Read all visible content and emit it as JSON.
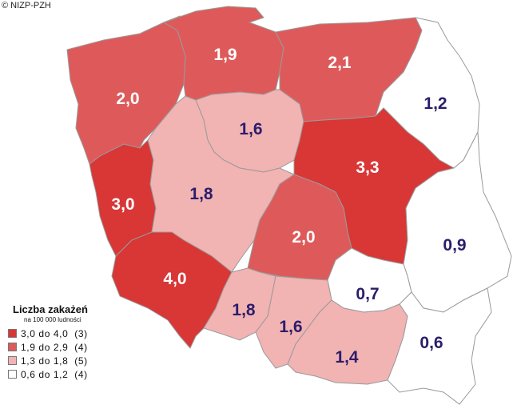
{
  "copyright": "© NIZP-PZH",
  "legend": {
    "title": "Liczba zakażeń",
    "subtitle": "na 100 000 ludności",
    "items": [
      {
        "range": "3,0 do 4,0",
        "count": "(3)",
        "color": "#d93636"
      },
      {
        "range": "1,9 do 2,9",
        "count": "(4)",
        "color": "#de5a5a"
      },
      {
        "range": "1,3 do 1,8",
        "count": "(5)",
        "color": "#f2b3b3"
      },
      {
        "range": "0,6 do 1,2",
        "count": "(4)",
        "color": "#ffffff"
      }
    ]
  },
  "regions": [
    {
      "name": "zachodniopomorskie",
      "value": "2,0",
      "color": "#de5a5a"
    },
    {
      "name": "pomorskie",
      "value": "1,9",
      "color": "#de5a5a"
    },
    {
      "name": "warmińsko-mazurskie",
      "value": "2,1",
      "color": "#de5a5a"
    },
    {
      "name": "podlaskie",
      "value": "1,2",
      "color": "#ffffff"
    },
    {
      "name": "kujawsko-pomorskie",
      "value": "1,6",
      "color": "#f2b3b3"
    },
    {
      "name": "mazowieckie",
      "value": "3,3",
      "color": "#d93636"
    },
    {
      "name": "lubuskie",
      "value": "3,0",
      "color": "#d93636"
    },
    {
      "name": "wielkopolskie",
      "value": "1,8",
      "color": "#f2b3b3"
    },
    {
      "name": "łódzkie",
      "value": "2,0",
      "color": "#de5a5a"
    },
    {
      "name": "lubelskie",
      "value": "0,9",
      "color": "#ffffff"
    },
    {
      "name": "dolnośląskie",
      "value": "4,0",
      "color": "#d93636"
    },
    {
      "name": "świętokrzyskie",
      "value": "0,7",
      "color": "#ffffff"
    },
    {
      "name": "opolskie",
      "value": "1,8",
      "color": "#f2b3b3"
    },
    {
      "name": "śląskie",
      "value": "1,6",
      "color": "#f2b3b3"
    },
    {
      "name": "małopolskie",
      "value": "1,4",
      "color": "#f2b3b3"
    },
    {
      "name": "podkarpackie",
      "value": "0,6",
      "color": "#ffffff"
    }
  ]
}
